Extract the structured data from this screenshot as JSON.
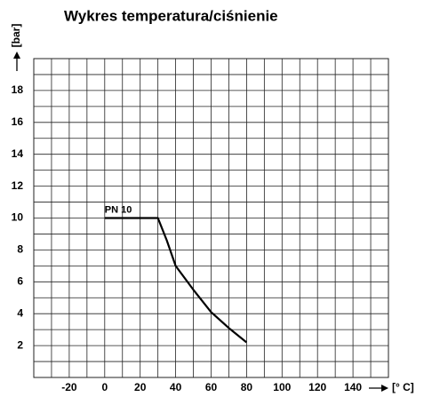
{
  "chart_data": {
    "type": "line",
    "title": "Wykres temperatura/ciśnienie",
    "x_label": "[° C]",
    "y_label": "[bar]",
    "x": [
      0,
      30,
      35,
      40,
      50,
      60,
      70,
      80
    ],
    "series": [
      {
        "name": "PN 10",
        "color": "#000000",
        "values": [
          10,
          10,
          8.6,
          7,
          5.5,
          4.1,
          3.1,
          2.2
        ]
      }
    ],
    "xlim": [
      -40,
      160
    ],
    "xticks": [
      -20,
      0,
      20,
      40,
      60,
      80,
      100,
      120,
      140
    ],
    "x_minor_ticks": [
      -30,
      -10,
      10,
      30,
      50,
      70,
      90,
      110,
      130,
      150
    ],
    "ylim": [
      0,
      20
    ],
    "yticks": [
      2,
      4,
      6,
      8,
      10,
      12,
      14,
      16,
      18
    ],
    "y_minor_ticks": [
      1,
      3,
      5,
      7,
      9,
      11,
      13,
      15,
      17,
      19
    ],
    "grid": true
  }
}
